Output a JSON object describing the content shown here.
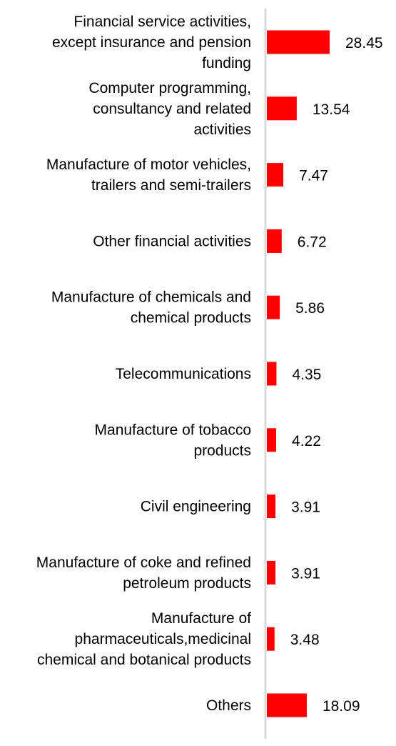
{
  "chart_data": {
    "type": "bar",
    "orientation": "horizontal",
    "categories": [
      "Financial service activities, except insurance and pension funding",
      "Computer programming, consultancy and related activities",
      "Manufacture of motor vehicles, trailers and semi-trailers",
      "Other financial activities",
      "Manufacture of chemicals and chemical products",
      "Telecommunications",
      "Manufacture of tobacco products",
      "Civil engineering",
      "Manufacture of coke and refined petroleum products",
      "Manufacture of pharmaceuticals,medicinal chemical and botanical products",
      "Others"
    ],
    "category_lines": [
      [
        "Financial service activities,",
        "except insurance and pension",
        "funding"
      ],
      [
        "Computer programming,",
        "consultancy and related",
        "activities"
      ],
      [
        "Manufacture of motor vehicles,",
        "trailers and semi-trailers"
      ],
      [
        "Other financial activities"
      ],
      [
        "Manufacture of chemicals and",
        "chemical products"
      ],
      [
        "Telecommunications"
      ],
      [
        "Manufacture of tobacco",
        "products"
      ],
      [
        "Civil engineering"
      ],
      [
        "Manufacture of coke and refined",
        "petroleum products"
      ],
      [
        "Manufacture of",
        "pharmaceuticals,medicinal",
        "chemical and botanical products"
      ],
      [
        "Others"
      ]
    ],
    "values": [
      28.45,
      13.54,
      7.47,
      6.72,
      5.86,
      4.35,
      4.22,
      3.91,
      3.91,
      3.48,
      18.09
    ],
    "value_labels": [
      "28.45",
      "13.54",
      "7.47",
      "6.72",
      "5.86",
      "4.35",
      "4.22",
      "3.91",
      "3.91",
      "3.48",
      "18.09"
    ],
    "bar_color": "#ff0000",
    "axis_color": "#d9d9d9",
    "xlim": [
      0,
      30
    ],
    "grid": false,
    "legend": "none"
  }
}
